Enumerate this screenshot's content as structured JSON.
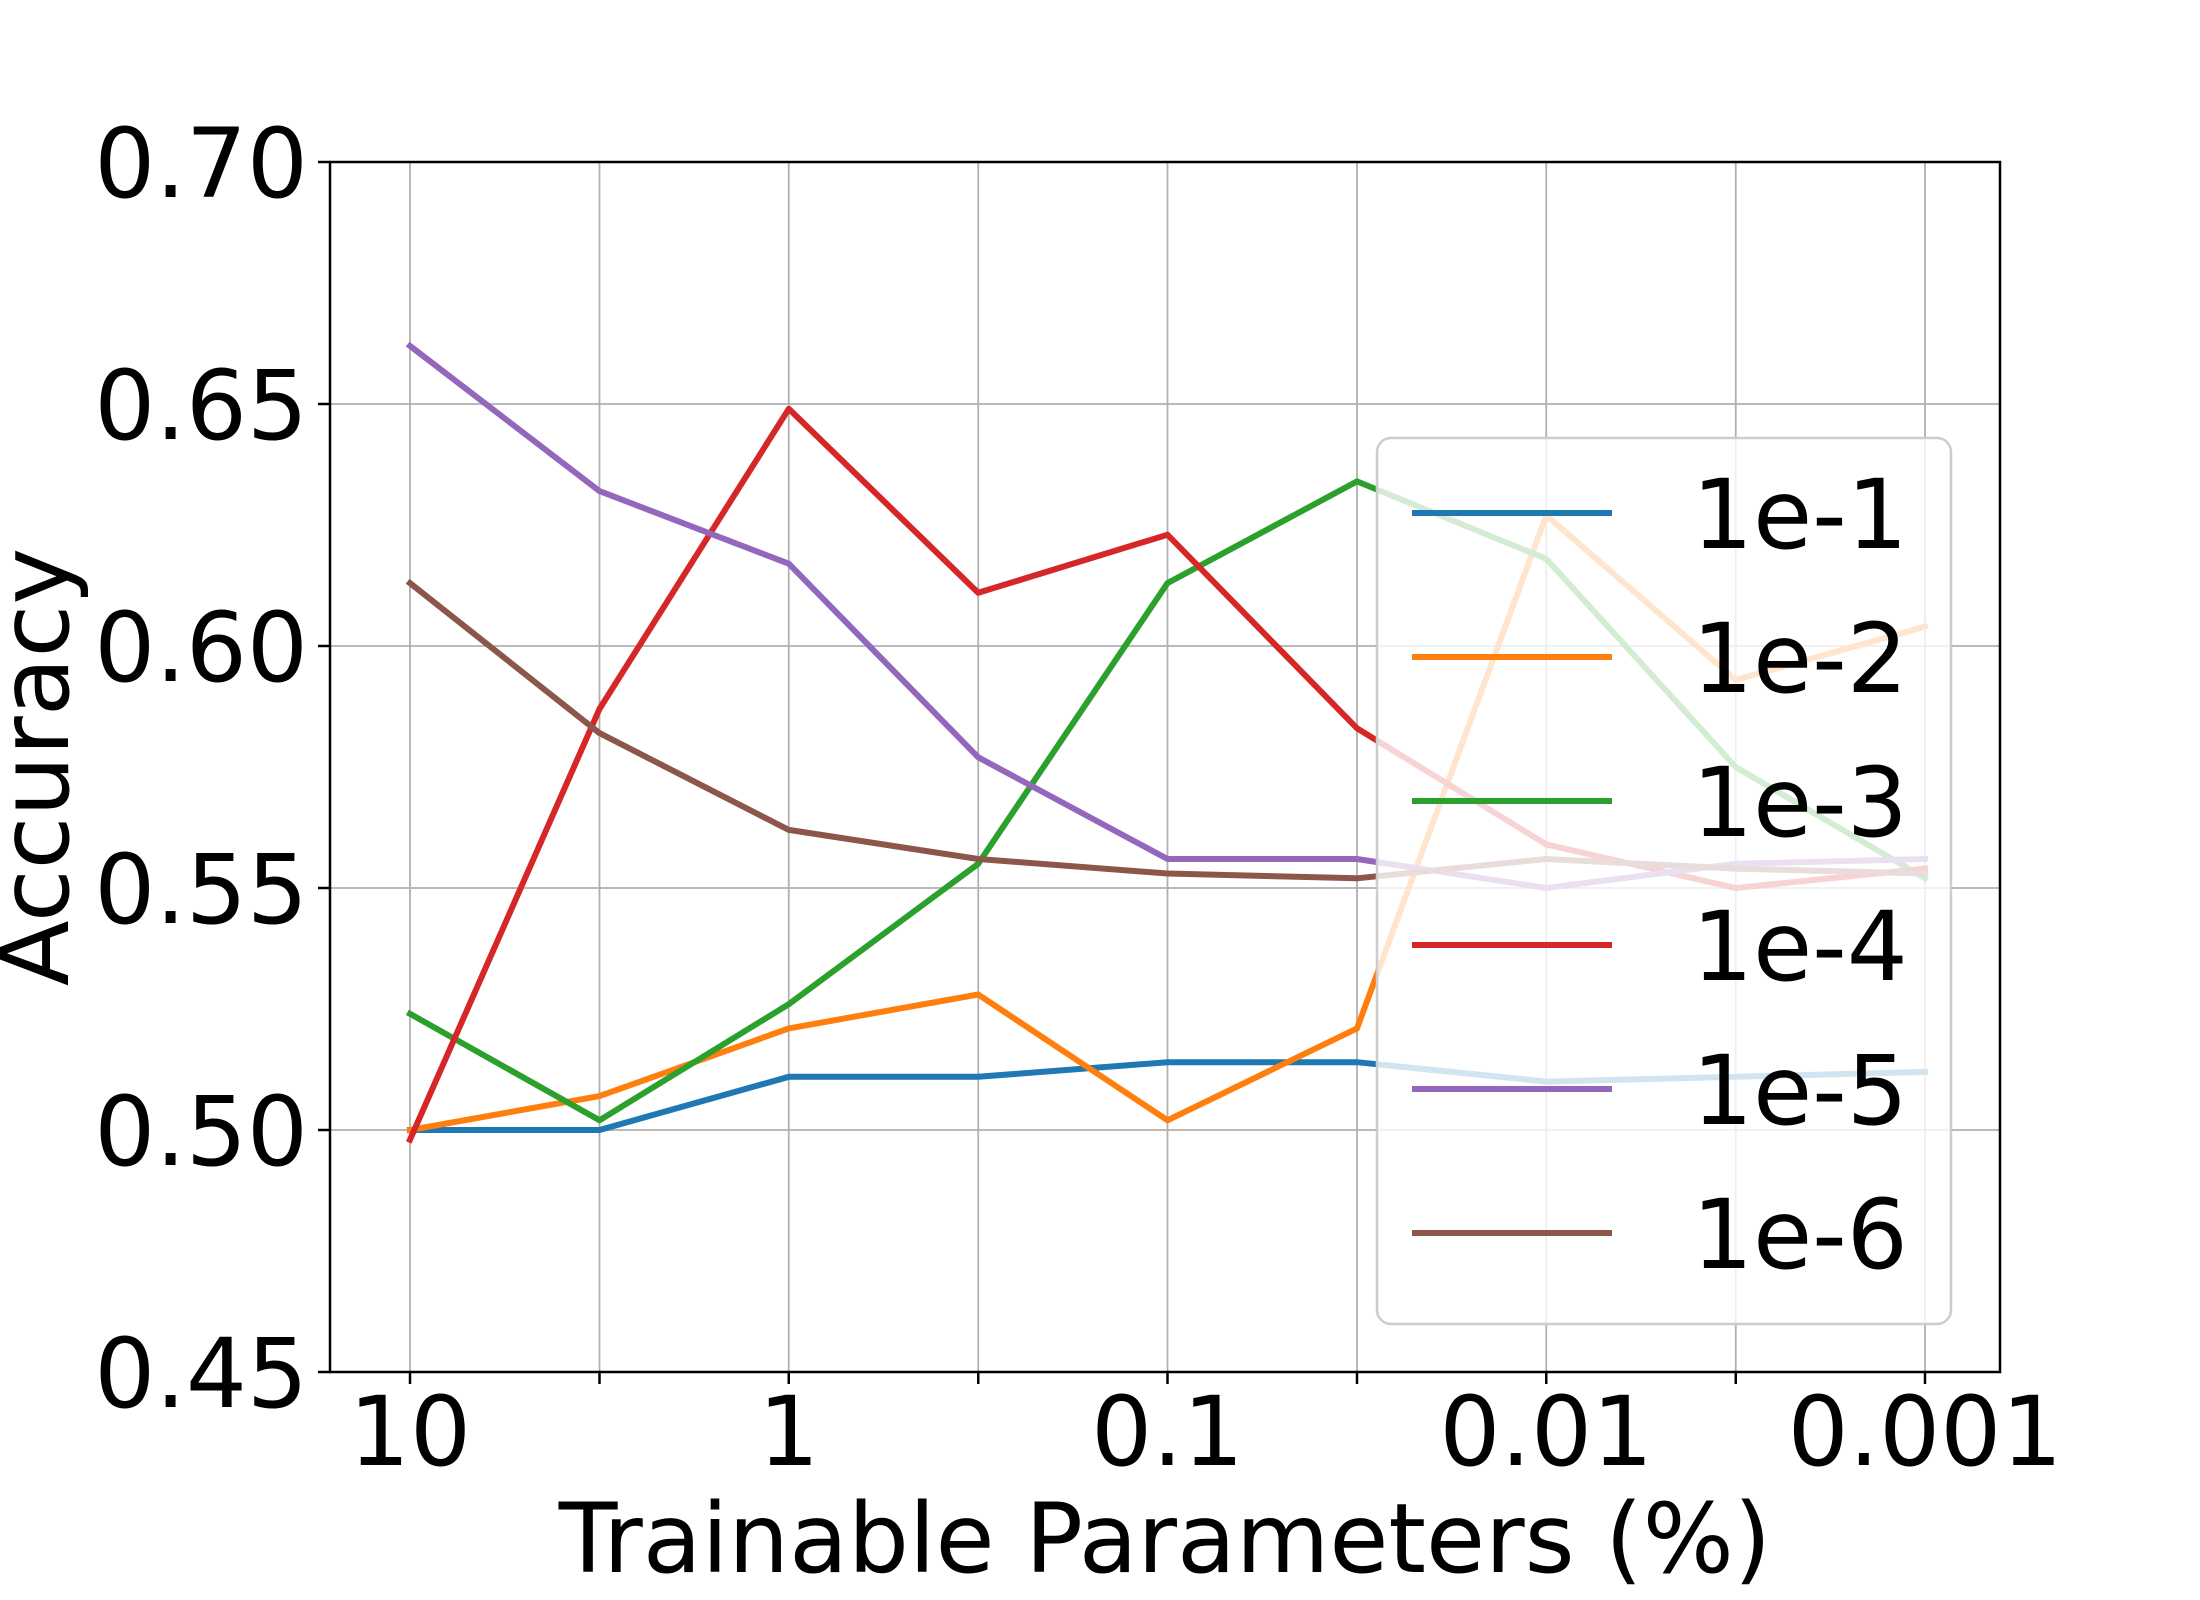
{
  "chart_data": {
    "type": "line",
    "xlabel": "Trainable Parameters (%)",
    "ylabel": "Accuracy",
    "x_scale": "log",
    "x_reversed": true,
    "x": [
      10,
      3.16,
      1,
      0.316,
      0.1,
      0.0316,
      0.01,
      0.00316,
      0.001
    ],
    "x_tick_values": [
      10,
      1,
      0.1,
      0.01,
      0.001
    ],
    "x_tick_labels": [
      "10",
      "1",
      "0.1",
      "0.01",
      "0.001"
    ],
    "y_tick_values": [
      0.45,
      0.5,
      0.55,
      0.6,
      0.65,
      0.7
    ],
    "y_tick_labels": [
      "0.45",
      "0.50",
      "0.55",
      "0.60",
      "0.65",
      "0.70"
    ],
    "ylim": [
      0.45,
      0.7
    ],
    "grid": true,
    "legend_position": "right",
    "series": [
      {
        "name": "1e-1",
        "color": "#1f77b4",
        "values": [
          0.5,
          0.5,
          0.511,
          0.511,
          0.514,
          0.514,
          0.51,
          0.511,
          0.512
        ]
      },
      {
        "name": "1e-2",
        "color": "#ff7f0e",
        "values": [
          0.5,
          0.507,
          0.521,
          0.528,
          0.502,
          0.521,
          0.627,
          0.593,
          0.604
        ]
      },
      {
        "name": "1e-3",
        "color": "#2ca02c",
        "values": [
          0.524,
          0.502,
          0.526,
          0.555,
          0.613,
          0.634,
          0.618,
          0.575,
          0.552
        ]
      },
      {
        "name": "1e-4",
        "color": "#d62728",
        "values": [
          0.498,
          0.587,
          0.649,
          0.611,
          0.623,
          0.583,
          0.559,
          0.55,
          0.554
        ]
      },
      {
        "name": "1e-5",
        "color": "#9467bd",
        "values": [
          0.662,
          0.632,
          0.617,
          0.577,
          0.556,
          0.556,
          0.55,
          0.555,
          0.556
        ]
      },
      {
        "name": "1e-6",
        "color": "#8c564b",
        "values": [
          0.613,
          0.582,
          0.562,
          0.556,
          0.553,
          0.552,
          0.556,
          0.554,
          0.553
        ]
      }
    ]
  }
}
